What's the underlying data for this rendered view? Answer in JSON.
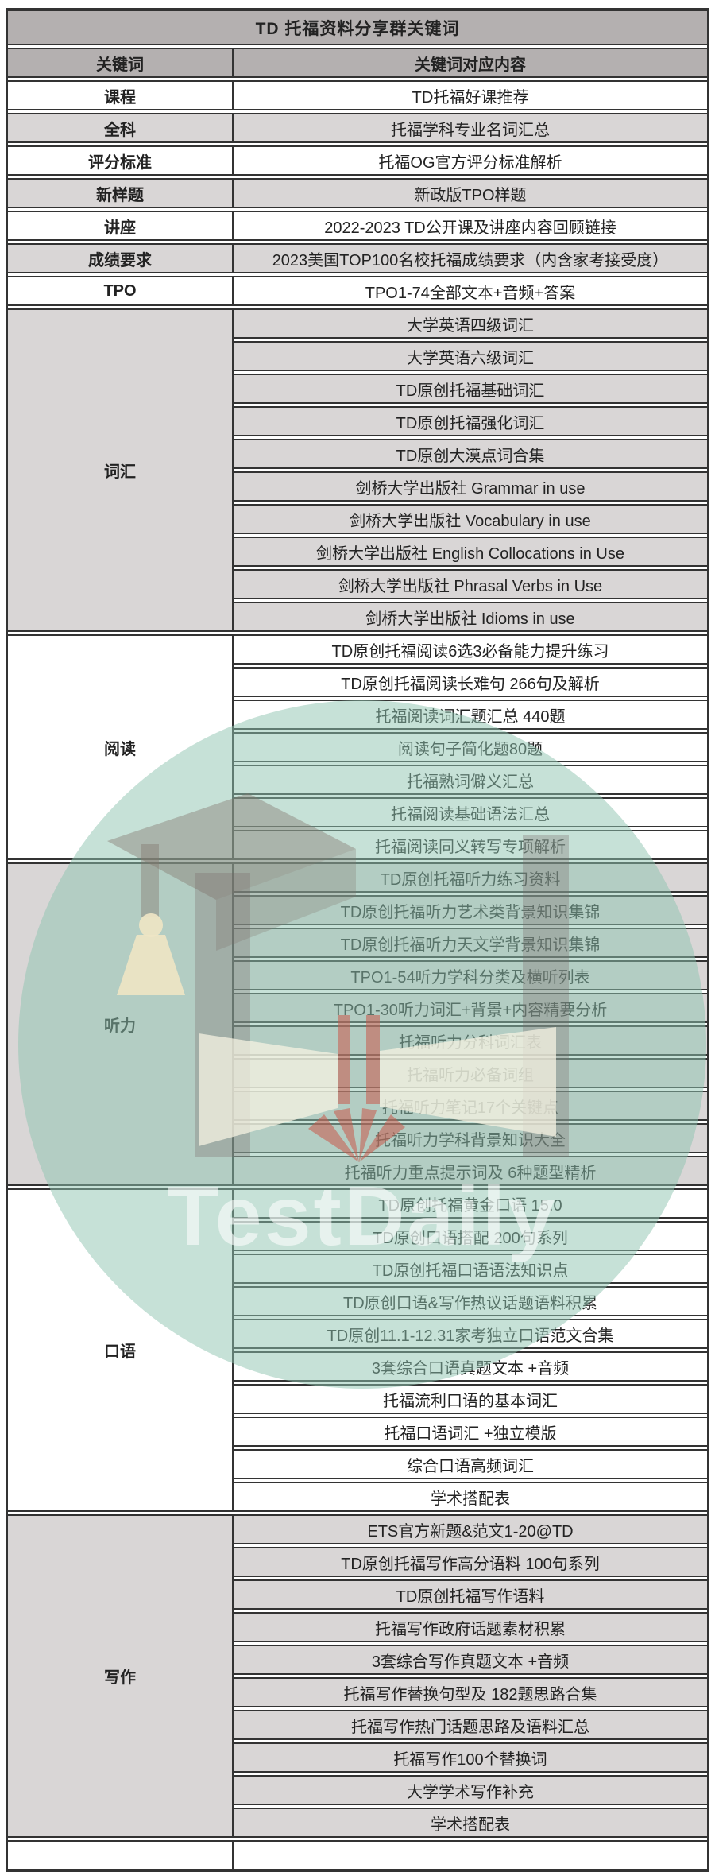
{
  "title": "TD 托福资料分享群关键词",
  "columns": [
    "关键词",
    "关键词对应内容"
  ],
  "rows": [
    {
      "keyword": "课程",
      "shade": "white",
      "items": [
        "TD托福好课推荐"
      ]
    },
    {
      "keyword": "全科",
      "shade": "gray",
      "items": [
        "托福学科专业名词汇总"
      ]
    },
    {
      "keyword": "评分标准",
      "shade": "white",
      "items": [
        "托福OG官方评分标准解析"
      ]
    },
    {
      "keyword": "新样题",
      "shade": "gray",
      "items": [
        "新政版TPO样题"
      ]
    },
    {
      "keyword": "讲座",
      "shade": "white",
      "items": [
        "2022-2023 TD公开课及讲座内容回顾链接"
      ]
    },
    {
      "keyword": "成绩要求",
      "shade": "gray",
      "items": [
        "2023美国TOP100名校托福成绩要求（内含家考接受度）"
      ]
    },
    {
      "keyword": "TPO",
      "shade": "white",
      "items": [
        "TPO1-74全部文本+音频+答案"
      ]
    },
    {
      "keyword": "词汇",
      "shade": "gray",
      "items": [
        "大学英语四级词汇",
        "大学英语六级词汇",
        "TD原创托福基础词汇",
        "TD原创托福强化词汇",
        "TD原创大漠点词合集",
        "剑桥大学出版社 Grammar in use",
        "剑桥大学出版社 Vocabulary in use",
        "剑桥大学出版社 English Collocations in Use",
        "剑桥大学出版社 Phrasal Verbs in Use",
        "剑桥大学出版社 Idioms in use"
      ]
    },
    {
      "keyword": "阅读",
      "shade": "white",
      "items": [
        "TD原创托福阅读6选3必备能力提升练习",
        "TD原创托福阅读长难句 266句及解析",
        "托福阅读词汇题汇总 440题",
        "阅读句子简化题80题",
        "托福熟词僻义汇总",
        "托福阅读基础语法汇总",
        "托福阅读同义转写专项解析"
      ]
    },
    {
      "keyword": "听力",
      "shade": "gray",
      "items": [
        "TD原创托福听力练习资料",
        "TD原创托福听力艺术类背景知识集锦",
        "TD原创托福听力天文学背景知识集锦",
        "TPO1-54听力学科分类及横听列表",
        "TPO1-30听力词汇+背景+内容精要分析",
        "托福听力分科词汇表",
        "托福听力必备词组",
        "托福听力笔记17个关键点",
        "托福听力学科背景知识大全",
        "托福听力重点提示词及 6种题型精析"
      ]
    },
    {
      "keyword": "口语",
      "shade": "white",
      "items": [
        "TD原创托福黄金口语 15.0",
        "TD原创口语搭配 200句系列",
        "TD原创托福口语语法知识点",
        "TD原创口语&写作热议话题语料积累",
        "TD原创11.1-12.31家考独立口语范文合集",
        "3套综合口语真题文本 +音频",
        "托福流利口语的基本词汇",
        "托福口语词汇 +独立模版",
        "综合口语高频词汇",
        "学术搭配表"
      ]
    },
    {
      "keyword": "写作",
      "shade": "gray",
      "items": [
        "ETS官方新题&范文1-20@TD",
        "TD原创托福写作高分语料 100句系列",
        "TD原创托福写作语料",
        "托福写作政府话题素材积累",
        "3套综合写作真题文本 +音频",
        "托福写作替换句型及 182题思路合集",
        "托福写作热门话题思路及语料汇总",
        "托福写作100个替换词",
        "大学学术写作补充",
        "学术搭配表"
      ]
    },
    {
      "keyword": "",
      "shade": "white",
      "items": [
        ""
      ]
    }
  ],
  "watermark": {
    "brand": "TestDaily"
  },
  "colors": {
    "header_bg": "#b4b0b0",
    "row_gray": "#d9d6d6",
    "row_white": "#ffffff",
    "border": "#333333",
    "watermark_teal": "#8dc4b0",
    "watermark_red": "#c85a4b",
    "watermark_cream": "#ece4c4"
  }
}
